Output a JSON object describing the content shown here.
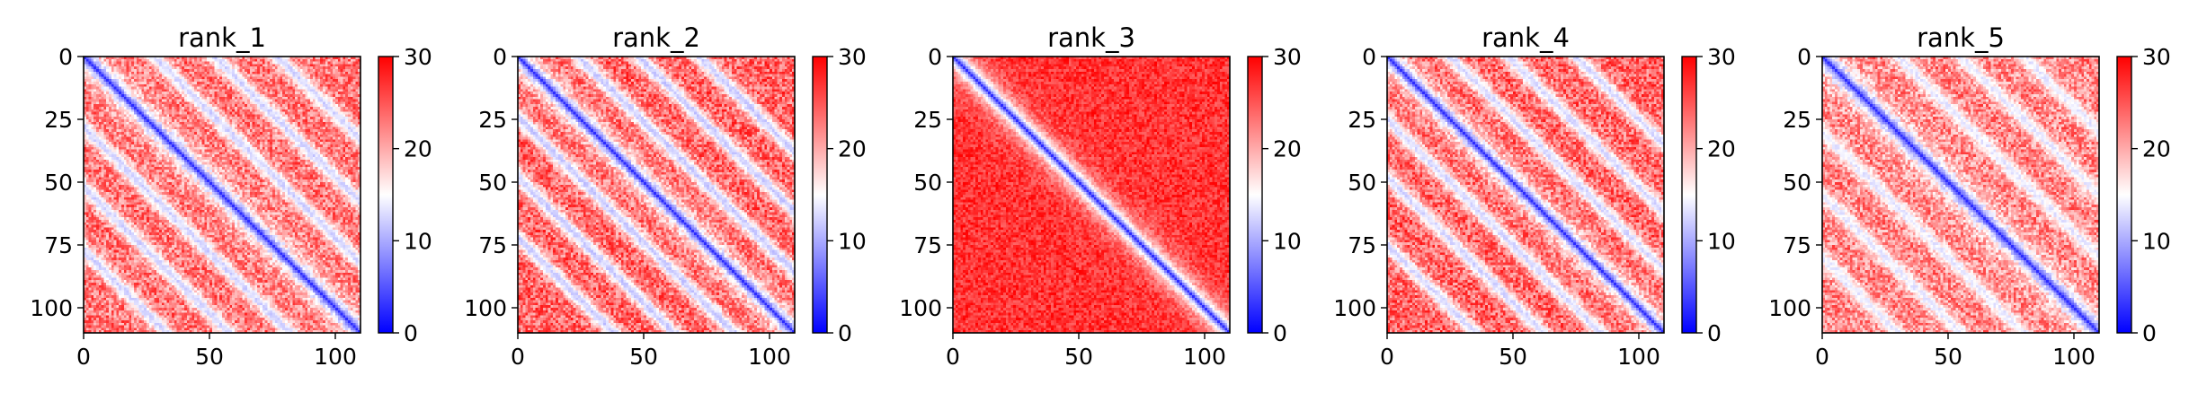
{
  "figure": {
    "colormap": "bwr",
    "colors": {
      "low": "#0000ff",
      "mid": "#ffffff",
      "high": "#ff0000"
    }
  },
  "chart_data": [
    {
      "type": "heatmap",
      "title": "rank_1",
      "matrix_size": 110,
      "xlim": [
        0,
        110
      ],
      "ylim": [
        110,
        0
      ],
      "xticks": [
        0,
        50,
        100
      ],
      "yticks": [
        0,
        25,
        50,
        75,
        100
      ],
      "colorbar": {
        "range": [
          0,
          30
        ],
        "ticks": [
          0,
          10,
          20,
          30
        ]
      },
      "pattern": {
        "off_diagonals": [
          28,
          52,
          77
        ],
        "off_diagonal_min": 9,
        "background": 23,
        "background_noise": 5
      }
    },
    {
      "type": "heatmap",
      "title": "rank_2",
      "matrix_size": 110,
      "xlim": [
        0,
        110
      ],
      "ylim": [
        110,
        0
      ],
      "xticks": [
        0,
        50,
        100
      ],
      "yticks": [
        0,
        25,
        50,
        75,
        100
      ],
      "colorbar": {
        "range": [
          0,
          30
        ],
        "ticks": [
          0,
          10,
          20,
          30
        ]
      },
      "pattern": {
        "off_diagonals": [
          24,
          48,
          72
        ],
        "off_diagonal_min": 8,
        "background": 24,
        "background_noise": 5
      }
    },
    {
      "type": "heatmap",
      "title": "rank_3",
      "matrix_size": 110,
      "xlim": [
        0,
        110
      ],
      "ylim": [
        110,
        0
      ],
      "xticks": [
        0,
        50,
        100
      ],
      "yticks": [
        0,
        25,
        50,
        75,
        100
      ],
      "colorbar": {
        "range": [
          0,
          30
        ],
        "ticks": [
          0,
          10,
          20,
          30
        ]
      },
      "pattern": {
        "off_diagonals": [],
        "off_diagonal_min": 20,
        "background": 27,
        "background_noise": 3
      }
    },
    {
      "type": "heatmap",
      "title": "rank_4",
      "matrix_size": 110,
      "xlim": [
        0,
        110
      ],
      "ylim": [
        110,
        0
      ],
      "xticks": [
        0,
        50,
        100
      ],
      "yticks": [
        0,
        25,
        50,
        75,
        100
      ],
      "colorbar": {
        "range": [
          0,
          30
        ],
        "ticks": [
          0,
          10,
          20,
          30
        ]
      },
      "pattern": {
        "off_diagonals": [
          25,
          48,
          75
        ],
        "off_diagonal_min": 9,
        "background": 24,
        "background_noise": 5
      }
    },
    {
      "type": "heatmap",
      "title": "rank_5",
      "matrix_size": 110,
      "xlim": [
        0,
        110
      ],
      "ylim": [
        110,
        0
      ],
      "xticks": [
        0,
        50,
        100
      ],
      "yticks": [
        0,
        25,
        50,
        75,
        100
      ],
      "colorbar": {
        "range": [
          0,
          30
        ],
        "ticks": [
          0,
          10,
          20,
          30
        ]
      },
      "pattern": {
        "off_diagonals": [
          30,
          55,
          80
        ],
        "off_diagonal_min": 11,
        "background": 22,
        "background_noise": 5
      }
    }
  ]
}
